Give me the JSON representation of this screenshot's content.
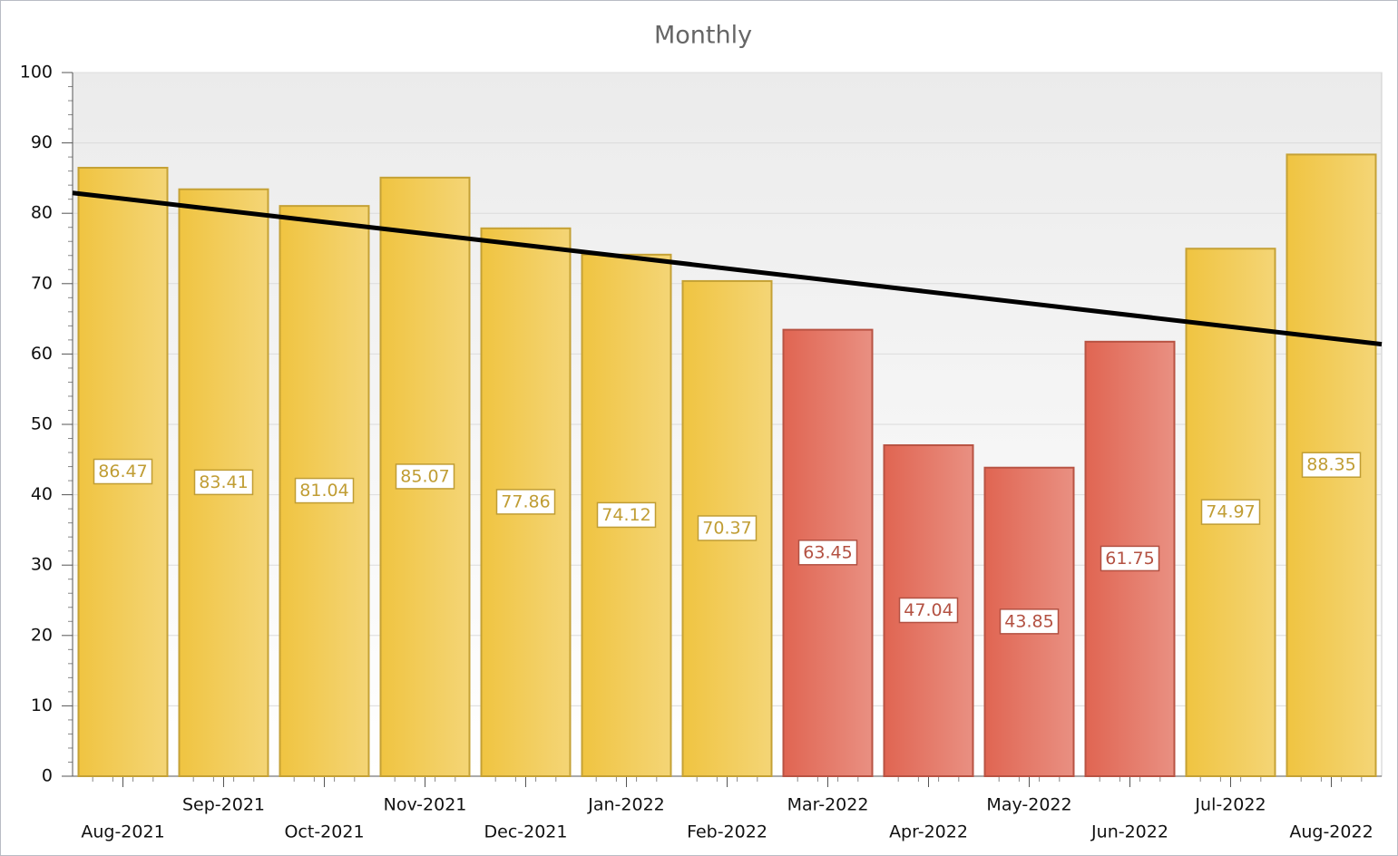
{
  "chart_data": {
    "type": "bar",
    "title": "Monthly",
    "categories": [
      "Aug-2021",
      "Sep-2021",
      "Oct-2021",
      "Nov-2021",
      "Dec-2021",
      "Jan-2022",
      "Feb-2022",
      "Mar-2022",
      "Apr-2022",
      "May-2022",
      "Jun-2022",
      "Jul-2022",
      "Aug-2022"
    ],
    "values": [
      86.47,
      83.41,
      81.04,
      85.07,
      77.86,
      74.12,
      70.37,
      63.45,
      47.04,
      43.85,
      61.75,
      74.97,
      88.35
    ],
    "colors": [
      "#f0c441",
      "#f0c441",
      "#f0c441",
      "#f0c441",
      "#f0c441",
      "#f0c441",
      "#f0c441",
      "#e06552",
      "#e06552",
      "#e06552",
      "#e06552",
      "#f0c441",
      "#f0c441"
    ],
    "trend": {
      "color": "#000000",
      "values": [
        82.07,
        62.22
      ]
    },
    "ylim": [
      0,
      100
    ],
    "yticks": [
      0,
      10,
      20,
      30,
      40,
      50,
      60,
      70,
      80,
      90,
      100
    ],
    "grid": true
  }
}
